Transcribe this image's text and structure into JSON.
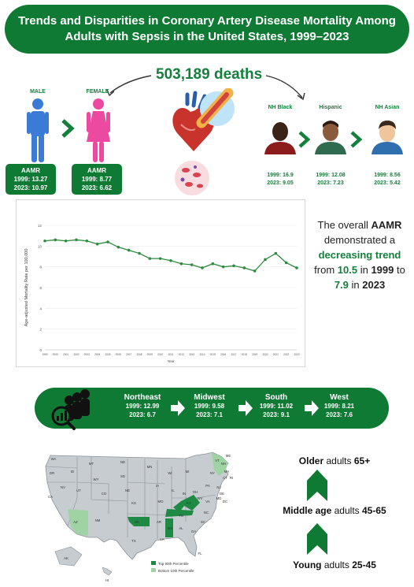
{
  "title": {
    "line1": "Trends and Disparities in Coronary Artery Disease Mortality Among",
    "line2": "Adults with Sepsis in the United States, 1999–2023"
  },
  "deaths": "503,189 deaths",
  "sex": {
    "male": {
      "label": "MALE",
      "heading": "AAMR",
      "y1999": "1999: 13.27",
      "y2023": "2023: 10.97"
    },
    "female": {
      "label": "FEMALE",
      "heading": "AAMR",
      "y1999": "1999: 8.77",
      "y2023": "2023: 6.62"
    }
  },
  "race": [
    {
      "label": "NH Black",
      "y1999": "1999: 16.9",
      "y2023": "2023: 9.05"
    },
    {
      "label": "Hispanic",
      "y1999": "1999: 12.08",
      "y2023": "2023: 7.23"
    },
    {
      "label": "NH Asian",
      "y1999": "1999: 8.56",
      "y2023": "2023: 5.42"
    }
  ],
  "chart_data": {
    "type": "line",
    "ylabel": "Age-adjusted Mortality Rate per 100,000",
    "xlabel": "Year",
    "ylim": [
      0,
      12
    ],
    "yticks": [
      0,
      2,
      4,
      6,
      8,
      10,
      12
    ],
    "grid": true,
    "color": "#2e8b3f",
    "x": [
      "1999",
      "2000",
      "2001",
      "2002",
      "2003",
      "2004",
      "2005",
      "2006",
      "2007",
      "2008",
      "2009",
      "2010",
      "2011",
      "2012",
      "2013",
      "2014",
      "2015",
      "2016",
      "2017",
      "2018",
      "2019",
      "2020",
      "2021",
      "2022",
      "2023"
    ],
    "values": [
      10.5,
      10.6,
      10.5,
      10.6,
      10.5,
      10.2,
      10.4,
      9.9,
      9.6,
      9.3,
      8.8,
      8.8,
      8.6,
      8.3,
      8.2,
      7.9,
      8.3,
      8.0,
      8.1,
      7.9,
      7.6,
      8.7,
      9.3,
      8.4,
      7.9
    ]
  },
  "trend": {
    "t1": "The overall ",
    "t2": "AAMR",
    "t3": " demonstrated a ",
    "t4": "decreasing trend",
    "t5": " from ",
    "t6": "10.5",
    "t7": " in ",
    "t8": "1999",
    "t9": " to ",
    "t10": "7.9",
    "t11": " in ",
    "t12": "2023"
  },
  "regions": [
    {
      "name": "Northeast",
      "y1999": "1999: 12.99",
      "y2023": "2023: 6.7"
    },
    {
      "name": "Midwest",
      "y1999": "1999: 9.58",
      "y2023": "2023: 7.1"
    },
    {
      "name": "South",
      "y1999": "1999: 11.02",
      "y2023": "2023: 9.1"
    },
    {
      "name": "West",
      "y1999": "1999: 8.21",
      "y2023": "2023: 7.6"
    }
  ],
  "map": {
    "legend_top": "Top 90th Percentile",
    "legend_bottom": "Bottom 10th Percentile",
    "states": [
      "WA",
      "OR",
      "CA",
      "NV",
      "ID",
      "MT",
      "WY",
      "UT",
      "AZ",
      "CO",
      "NM",
      "ND",
      "SD",
      "NE",
      "KS",
      "OK",
      "TX",
      "MN",
      "IA",
      "MO",
      "AR",
      "LA",
      "WI",
      "IL",
      "MI",
      "IN",
      "OH",
      "KY",
      "TN",
      "MS",
      "AL",
      "GA",
      "FL",
      "SC",
      "NC",
      "VA",
      "WV",
      "PA",
      "NY",
      "VT",
      "NH",
      "ME",
      "MA",
      "CT",
      "RI",
      "NJ",
      "DE",
      "MD",
      "DC",
      "AK",
      "HI"
    ]
  },
  "age": {
    "older": {
      "a": "Older",
      "b": " adults ",
      "c": "65+"
    },
    "middle": {
      "a": "Middle age",
      "b": " adults ",
      "c": "45-65"
    },
    "young": {
      "a": "Young",
      "b": " adults ",
      "c": "25-45"
    }
  }
}
